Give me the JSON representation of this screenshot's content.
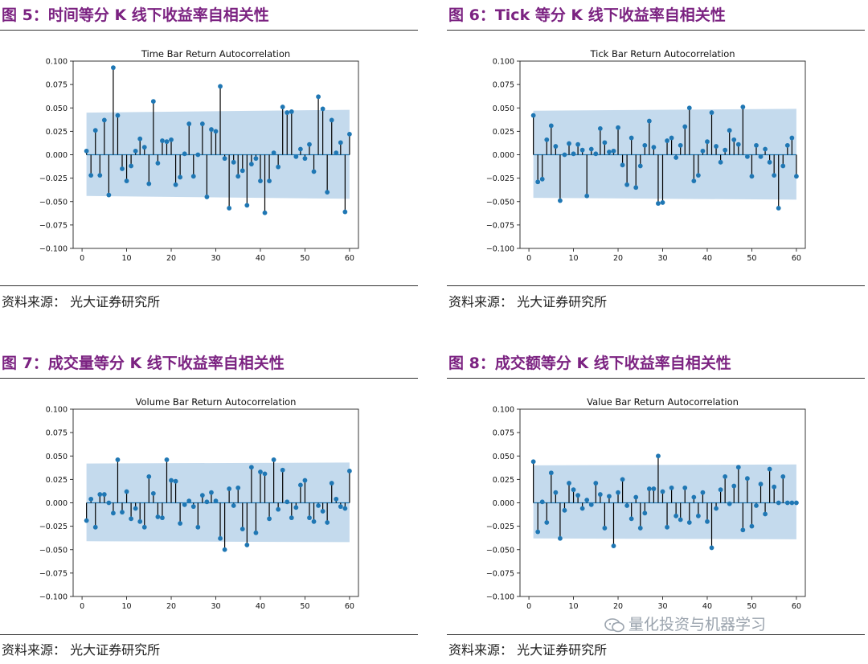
{
  "colors": {
    "title": "#7b2281",
    "marker": "#1f77b4",
    "band": "#bad3ea",
    "stem": "#000000",
    "zero_line": "#1f77b4"
  },
  "panels": [
    {
      "figure_title": "图 5：时间等分 K 线下收益率自相关性",
      "source": "资料来源：   光大证券研究所"
    },
    {
      "figure_title": "图 6：Tick 等分 K 线下收益率自相关性",
      "source": "资料来源：   光大证券研究所"
    },
    {
      "figure_title": "图 7：成交量等分 K 线下收益率自相关性",
      "source": "资料来源：   光大证券研究所"
    },
    {
      "figure_title": "图 8：成交额等分 K 线下收益率自相关性",
      "source": "资料来源：   光大证券研究所"
    }
  ],
  "watermark": "量化投资与机器学习",
  "chart_data": [
    {
      "type": "stem",
      "title": "Time Bar Return Autocorrelation",
      "xlim": [
        -2,
        62
      ],
      "ylim": [
        -0.1,
        0.1
      ],
      "xticks": [
        0,
        10,
        20,
        30,
        40,
        50,
        60
      ],
      "yticks": [
        -0.1,
        -0.075,
        -0.05,
        -0.025,
        0.0,
        0.025,
        0.05,
        0.075,
        0.1
      ],
      "ytick_labels": [
        "−0.100",
        "−0.075",
        "−0.050",
        "−0.025",
        "0.000",
        "0.025",
        "0.050",
        "0.075",
        "0.100"
      ],
      "confidence_band": {
        "x": [
          1,
          60
        ],
        "upper": [
          0.045,
          0.048
        ],
        "lower": [
          -0.044,
          -0.047
        ]
      },
      "x": [
        1,
        2,
        3,
        4,
        5,
        6,
        7,
        8,
        9,
        10,
        11,
        12,
        13,
        14,
        15,
        16,
        17,
        18,
        19,
        20,
        21,
        22,
        23,
        24,
        25,
        26,
        27,
        28,
        29,
        30,
        31,
        32,
        33,
        34,
        35,
        36,
        37,
        38,
        39,
        40,
        41,
        42,
        43,
        44,
        45,
        46,
        47,
        48,
        49,
        50,
        51,
        52,
        53,
        54,
        55,
        56,
        57,
        58,
        59,
        60
      ],
      "values": [
        0.004,
        -0.022,
        0.026,
        -0.022,
        0.037,
        -0.043,
        0.093,
        0.042,
        -0.015,
        -0.028,
        -0.012,
        0.004,
        0.017,
        0.008,
        -0.031,
        0.057,
        -0.009,
        0.015,
        0.014,
        0.016,
        -0.032,
        -0.024,
        0.001,
        0.033,
        -0.023,
        0.0,
        0.033,
        -0.045,
        0.027,
        0.025,
        0.073,
        -0.004,
        -0.057,
        -0.008,
        -0.023,
        -0.017,
        -0.054,
        -0.01,
        -0.004,
        -0.028,
        -0.062,
        -0.028,
        0.002,
        -0.013,
        0.051,
        0.045,
        0.046,
        -0.002,
        0.006,
        -0.004,
        0.011,
        -0.018,
        0.062,
        0.049,
        -0.04,
        0.037,
        0.002,
        0.013,
        -0.061,
        0.022
      ]
    },
    {
      "type": "stem",
      "title": "Tick Bar Return Autocorrelation",
      "xlim": [
        -2,
        62
      ],
      "ylim": [
        -0.1,
        0.1
      ],
      "xticks": [
        0,
        10,
        20,
        30,
        40,
        50,
        60
      ],
      "yticks": [
        -0.1,
        -0.075,
        -0.05,
        -0.025,
        0.0,
        0.025,
        0.05,
        0.075,
        0.1
      ],
      "ytick_labels": [
        "−0.100",
        "−0.075",
        "−0.050",
        "−0.025",
        "0.000",
        "0.025",
        "0.050",
        "0.075",
        "0.100"
      ],
      "confidence_band": {
        "x": [
          1,
          60
        ],
        "upper": [
          0.047,
          0.049
        ],
        "lower": [
          -0.046,
          -0.048
        ]
      },
      "x": [
        1,
        2,
        3,
        4,
        5,
        6,
        7,
        8,
        9,
        10,
        11,
        12,
        13,
        14,
        15,
        16,
        17,
        18,
        19,
        20,
        21,
        22,
        23,
        24,
        25,
        26,
        27,
        28,
        29,
        30,
        31,
        32,
        33,
        34,
        35,
        36,
        37,
        38,
        39,
        40,
        41,
        42,
        43,
        44,
        45,
        46,
        47,
        48,
        49,
        50,
        51,
        52,
        53,
        54,
        55,
        56,
        57,
        58,
        59,
        60
      ],
      "values": [
        0.042,
        -0.029,
        -0.026,
        0.016,
        0.031,
        0.009,
        -0.049,
        0.0,
        0.012,
        0.001,
        0.011,
        0.005,
        -0.044,
        0.006,
        0.001,
        0.028,
        0.013,
        0.003,
        0.004,
        0.029,
        -0.011,
        -0.032,
        0.018,
        -0.035,
        -0.012,
        0.01,
        0.036,
        0.008,
        -0.052,
        -0.051,
        0.015,
        0.018,
        -0.003,
        0.01,
        0.03,
        0.05,
        -0.028,
        -0.022,
        0.004,
        0.014,
        0.045,
        0.009,
        -0.008,
        0.005,
        0.026,
        0.016,
        0.011,
        0.051,
        -0.002,
        -0.023,
        0.01,
        -0.002,
        0.006,
        -0.008,
        -0.022,
        -0.057,
        -0.012,
        0.01,
        0.018,
        -0.023
      ]
    },
    {
      "type": "stem",
      "title": "Volume Bar Return Autocorrelation",
      "xlim": [
        -2,
        62
      ],
      "ylim": [
        -0.1,
        0.1
      ],
      "xticks": [
        0,
        10,
        20,
        30,
        40,
        50,
        60
      ],
      "yticks": [
        -0.1,
        -0.075,
        -0.05,
        -0.025,
        0.0,
        0.025,
        0.05,
        0.075,
        0.1
      ],
      "ytick_labels": [
        "−0.100",
        "−0.075",
        "−0.050",
        "−0.025",
        "0.000",
        "0.025",
        "0.050",
        "0.075",
        "0.100"
      ],
      "confidence_band": {
        "x": [
          1,
          60
        ],
        "upper": [
          0.042,
          0.043
        ],
        "lower": [
          -0.041,
          -0.042
        ]
      },
      "x": [
        1,
        2,
        3,
        4,
        5,
        6,
        7,
        8,
        9,
        10,
        11,
        12,
        13,
        14,
        15,
        16,
        17,
        18,
        19,
        20,
        21,
        22,
        23,
        24,
        25,
        26,
        27,
        28,
        29,
        30,
        31,
        32,
        33,
        34,
        35,
        36,
        37,
        38,
        39,
        40,
        41,
        42,
        43,
        44,
        45,
        46,
        47,
        48,
        49,
        50,
        51,
        52,
        53,
        54,
        55,
        56,
        57,
        58,
        59,
        60
      ],
      "values": [
        -0.019,
        0.004,
        -0.026,
        0.009,
        0.009,
        0.0,
        -0.011,
        0.046,
        -0.01,
        0.012,
        -0.017,
        -0.006,
        -0.02,
        -0.026,
        0.028,
        0.01,
        -0.015,
        -0.016,
        0.046,
        0.024,
        0.023,
        -0.022,
        -0.002,
        0.002,
        -0.004,
        -0.026,
        0.008,
        0.001,
        0.011,
        0.002,
        -0.038,
        -0.05,
        0.015,
        -0.003,
        0.016,
        -0.028,
        -0.045,
        0.038,
        -0.032,
        0.033,
        0.031,
        -0.017,
        0.046,
        -0.007,
        0.035,
        0.001,
        -0.016,
        -0.005,
        0.019,
        0.024,
        -0.016,
        -0.02,
        -0.003,
        -0.009,
        -0.021,
        0.021,
        0.004,
        -0.004,
        -0.006,
        0.034
      ]
    },
    {
      "type": "stem",
      "title": "Value Bar Return Autocorrelation",
      "xlim": [
        -2,
        62
      ],
      "ylim": [
        -0.1,
        0.1
      ],
      "xticks": [
        0,
        10,
        20,
        30,
        40,
        50,
        60
      ],
      "yticks": [
        -0.1,
        -0.075,
        -0.05,
        -0.025,
        0.0,
        0.025,
        0.05,
        0.075,
        0.1
      ],
      "ytick_labels": [
        "−0.100",
        "−0.075",
        "−0.050",
        "−0.025",
        "0.000",
        "0.025",
        "0.050",
        "0.075",
        "0.100"
      ],
      "confidence_band": {
        "x": [
          1,
          60
        ],
        "upper": [
          0.04,
          0.041
        ],
        "lower": [
          -0.038,
          -0.039
        ]
      },
      "x": [
        1,
        2,
        3,
        4,
        5,
        6,
        7,
        8,
        9,
        10,
        11,
        12,
        13,
        14,
        15,
        16,
        17,
        18,
        19,
        20,
        21,
        22,
        23,
        24,
        25,
        26,
        27,
        28,
        29,
        30,
        31,
        32,
        33,
        34,
        35,
        36,
        37,
        38,
        39,
        40,
        41,
        42,
        43,
        44,
        45,
        46,
        47,
        48,
        49,
        50,
        51,
        52,
        53,
        54,
        55,
        56,
        57,
        58,
        59,
        60
      ],
      "values": [
        0.044,
        -0.031,
        0.001,
        -0.021,
        0.032,
        0.011,
        -0.038,
        -0.008,
        0.021,
        0.014,
        0.008,
        -0.006,
        0.003,
        -0.002,
        0.021,
        0.009,
        -0.027,
        0.007,
        -0.046,
        0.011,
        0.025,
        -0.003,
        -0.017,
        0.006,
        -0.027,
        -0.011,
        0.015,
        0.015,
        0.05,
        0.012,
        -0.026,
        0.016,
        -0.014,
        -0.018,
        0.016,
        -0.021,
        0.006,
        -0.014,
        0.011,
        -0.02,
        -0.048,
        -0.006,
        0.014,
        0.028,
        -0.001,
        0.018,
        0.038,
        -0.029,
        0.026,
        -0.025,
        -0.003,
        0.02,
        -0.012,
        0.036,
        0.017,
        0.0,
        0.028,
        0.0,
        0.0,
        0.0
      ]
    }
  ]
}
